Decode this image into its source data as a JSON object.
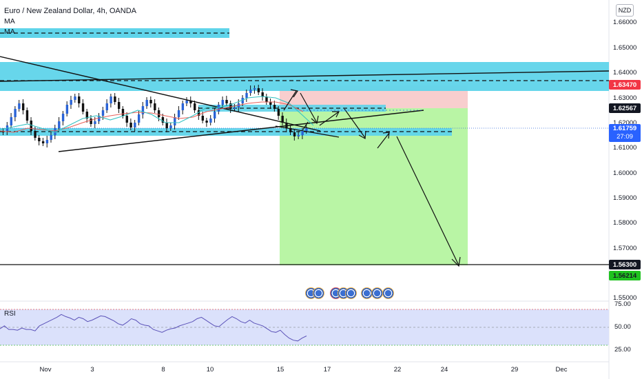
{
  "header": {
    "title": "Euro / New Zealand Dollar, 4h, OANDA",
    "indicator_1": "MA",
    "indicator_2": "MA"
  },
  "currency_badge": "NZD",
  "price_axis": {
    "ticks": [
      "1.66000",
      "1.65000",
      "1.64000",
      "1.63000",
      "1.62000",
      "1.61000",
      "1.60000",
      "1.59000",
      "1.58000",
      "1.57000",
      "1.55000"
    ]
  },
  "price_labels": {
    "target_upper": "1.63470",
    "entry": "1.62567",
    "current_price": "1.61759",
    "countdown": "27:09",
    "target_line": "1.56300",
    "target_green": "1.56214"
  },
  "rsi": {
    "label": "RSI",
    "ticks": [
      "75.00",
      "50.00",
      "25.00"
    ],
    "values": [
      48,
      52,
      47,
      47,
      46,
      49,
      47,
      47,
      45,
      52,
      55,
      58,
      61,
      64,
      68,
      65,
      63,
      60,
      64,
      62,
      58,
      60,
      63,
      66,
      65,
      62,
      59,
      55,
      53,
      57,
      62,
      60,
      55,
      53,
      52,
      47,
      45,
      43,
      46,
      48,
      49,
      52,
      54,
      56,
      58,
      62,
      64,
      60,
      56,
      52,
      51,
      56,
      61,
      65,
      62,
      58,
      56,
      60,
      56,
      54,
      52,
      48,
      44,
      43,
      46,
      40,
      35,
      32,
      31,
      35,
      38
    ]
  },
  "time_axis": {
    "ticks": [
      "Nov",
      "3",
      "8",
      "10",
      "15",
      "17",
      "22",
      "24",
      "29",
      "Dec"
    ]
  },
  "emoji_reactions": {
    "icons": [
      "rocket-icon",
      "rocket-icon",
      "heart-icon",
      "fire-icon",
      "thumb-icon",
      "like-icon",
      "like-icon",
      "like-icon"
    ]
  },
  "colors": {
    "zone_cyan": "#5fd4ea",
    "stop_red": "#f7c5c5",
    "target_green": "#a8f28e",
    "candle_up": "#2a63d6",
    "candle_down": "#111111",
    "ma_red": "#e8605a",
    "ma_teal": "#34c2c2"
  }
}
